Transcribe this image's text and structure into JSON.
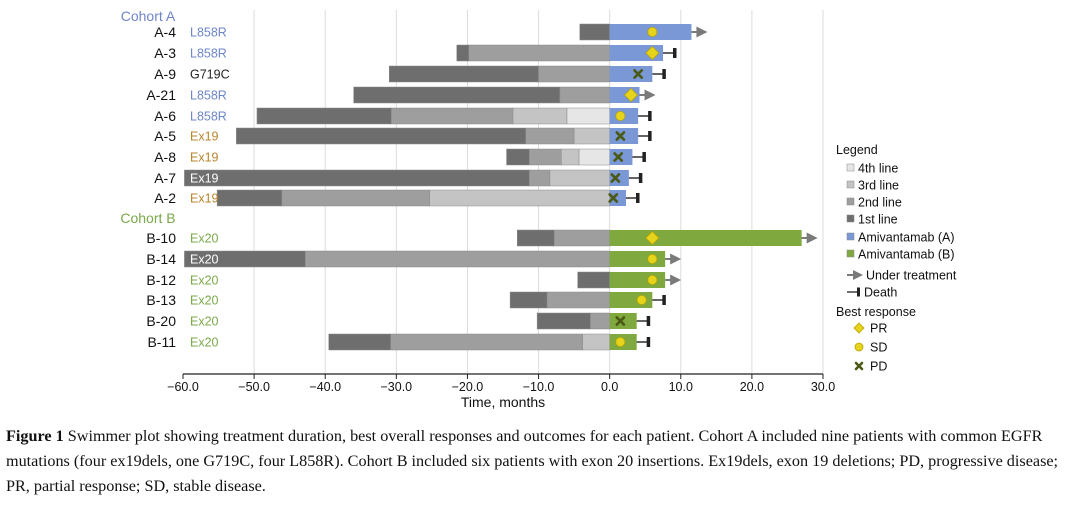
{
  "chart_data": {
    "type": "swimmer",
    "xlabel": "Time, months",
    "xlim": [
      -60,
      30
    ],
    "xticks": [
      "−60.0",
      "−50.0",
      "−40.0",
      "−30.0",
      "−20.0",
      "−10.0",
      "0.0",
      "10.0",
      "20.0",
      "30.0"
    ],
    "xtick_values": [
      -60,
      -50,
      -40,
      -30,
      -20,
      -10,
      0,
      10,
      20,
      30
    ],
    "colors": {
      "line1": "#6e6e6e",
      "line2": "#9e9e9e",
      "line3": "#c4c4c4",
      "line4": "#e6e6e6",
      "amivantamab_a": "#7a97d6",
      "amivantamab_b": "#7fa83e",
      "cohort_a_text": "#6d86c9",
      "cohort_b_text": "#7aa84a",
      "ex19_text": "#b7852d",
      "marker_pr": "#e6d31c",
      "marker_sd": "#e6d31c",
      "marker_pd": "#4a5a14",
      "arrow": "#7a7a7a",
      "death": "#222222"
    },
    "cohorts": [
      {
        "label": "Cohort A",
        "before_row": 0
      },
      {
        "label": "Cohort B",
        "before_row": 9
      }
    ],
    "patients": [
      {
        "id": "A-4",
        "mutation": "L858R",
        "cohort": "A",
        "prior": [
          [
            -4.2,
            0,
            1
          ]
        ],
        "treatment": 11.5,
        "response": "SD",
        "response_at": 6,
        "outcome": "arrow"
      },
      {
        "id": "A-3",
        "mutation": "L858R",
        "cohort": "A",
        "prior": [
          [
            -21.5,
            -19.8,
            1
          ],
          [
            -19.8,
            0,
            2
          ]
        ],
        "treatment": 7.5,
        "response": "PR",
        "response_at": 6,
        "outcome": "death"
      },
      {
        "id": "A-9",
        "mutation": "G719C",
        "cohort": "A",
        "prior": [
          [
            -31,
            -10,
            1
          ],
          [
            -10,
            0,
            2
          ]
        ],
        "treatment": 6,
        "response": "PD",
        "response_at": 4,
        "outcome": "death"
      },
      {
        "id": "A-21",
        "mutation": "L858R",
        "cohort": "A",
        "prior": [
          [
            -36,
            -7,
            1
          ],
          [
            -7,
            0,
            2
          ]
        ],
        "treatment": 4.2,
        "response": "PR",
        "response_at": 3,
        "outcome": "arrow"
      },
      {
        "id": "A-6",
        "mutation": "L858R",
        "cohort": "A",
        "prior": [
          [
            -49.6,
            -30.7,
            1
          ],
          [
            -30.7,
            -13.6,
            2
          ],
          [
            -13.6,
            -6,
            3
          ],
          [
            -6,
            0,
            4
          ]
        ],
        "treatment": 4,
        "response": "SD",
        "response_at": 1.5,
        "outcome": "death"
      },
      {
        "id": "A-5",
        "mutation": "Ex19",
        "cohort": "A",
        "prior": [
          [
            -52.5,
            -11.8,
            1
          ],
          [
            -11.8,
            -5,
            2
          ],
          [
            -5,
            0,
            3
          ]
        ],
        "treatment": 4,
        "response": "PD",
        "response_at": 1.5,
        "outcome": "death"
      },
      {
        "id": "A-8",
        "mutation": "Ex19",
        "cohort": "A",
        "prior": [
          [
            -14.5,
            -11.3,
            1
          ],
          [
            -11.3,
            -6.8,
            2
          ],
          [
            -6.8,
            -4.3,
            3
          ],
          [
            -4.3,
            0,
            4
          ]
        ],
        "treatment": 3.2,
        "response": "PD",
        "response_at": 1.2,
        "outcome": "death"
      },
      {
        "id": "A-7",
        "mutation": "Ex19",
        "cohort": "A",
        "prior": [
          [
            -59.8,
            -11.3,
            1
          ],
          [
            -11.3,
            -8.4,
            2
          ],
          [
            -8.4,
            0,
            3
          ]
        ],
        "treatment": 2.7,
        "response": "PD",
        "response_at": 0.8,
        "outcome": "death"
      },
      {
        "id": "A-2",
        "mutation": "Ex19",
        "cohort": "A",
        "prior": [
          [
            -55.2,
            -46.1,
            1
          ],
          [
            -46.1,
            -25.3,
            2
          ],
          [
            -25.3,
            0,
            3
          ]
        ],
        "treatment": 2.3,
        "response": "PD",
        "response_at": 0.5,
        "outcome": "death"
      },
      {
        "id": "B-10",
        "mutation": "Ex20",
        "cohort": "B",
        "prior": [
          [
            -13,
            -7.8,
            1
          ],
          [
            -7.8,
            0,
            2
          ]
        ],
        "treatment": 27,
        "response": "PR",
        "response_at": 6,
        "outcome": "arrow"
      },
      {
        "id": "B-14",
        "mutation": "Ex20",
        "cohort": "B",
        "prior": [
          [
            -59.8,
            -42.8,
            1
          ],
          [
            -42.8,
            0,
            2
          ]
        ],
        "treatment": 7.8,
        "response": "SD",
        "response_at": 6,
        "outcome": "arrow"
      },
      {
        "id": "B-12",
        "mutation": "Ex20",
        "cohort": "B",
        "prior": [
          [
            -4.5,
            0,
            1
          ]
        ],
        "treatment": 7.8,
        "response": "SD",
        "response_at": 6,
        "outcome": "arrow"
      },
      {
        "id": "B-13",
        "mutation": "Ex20",
        "cohort": "B",
        "prior": [
          [
            -14,
            -8.8,
            1
          ],
          [
            -8.8,
            0,
            2
          ]
        ],
        "treatment": 6,
        "response": "SD",
        "response_at": 4.5,
        "outcome": "death"
      },
      {
        "id": "B-20",
        "mutation": "Ex20",
        "cohort": "B",
        "prior": [
          [
            -10.2,
            -2.7,
            1
          ],
          [
            -2.7,
            0,
            2
          ]
        ],
        "treatment": 3.8,
        "response": "PD",
        "response_at": 1.5,
        "outcome": "death"
      },
      {
        "id": "B-11",
        "mutation": "Ex20",
        "cohort": "B",
        "prior": [
          [
            -39.5,
            -30.8,
            1
          ],
          [
            -30.8,
            -3.8,
            2
          ],
          [
            -3.8,
            0,
            3
          ]
        ],
        "treatment": 3.8,
        "response": "SD",
        "response_at": 1.5,
        "outcome": "death"
      }
    ],
    "legend": {
      "title": "Legend",
      "items": [
        {
          "label": "4th line",
          "kind": "box",
          "color_key": "line4"
        },
        {
          "label": "3rd line",
          "kind": "box",
          "color_key": "line3"
        },
        {
          "label": "2nd line",
          "kind": "box",
          "color_key": "line2"
        },
        {
          "label": "1st line",
          "kind": "box",
          "color_key": "line1"
        },
        {
          "label": "Amivantamab (A)",
          "kind": "box",
          "color_key": "amivantamab_a"
        },
        {
          "label": "Amivantamab (B)",
          "kind": "box",
          "color_key": "amivantamab_b"
        },
        {
          "label": "Under treatment",
          "kind": "arrow"
        },
        {
          "label": "Death",
          "kind": "death"
        }
      ],
      "response_title": "Best response",
      "responses": [
        {
          "label": "PR",
          "kind": "PR"
        },
        {
          "label": "SD",
          "kind": "SD"
        },
        {
          "label": "PD",
          "kind": "PD"
        }
      ]
    }
  },
  "caption": {
    "label": "Figure 1",
    "text": " Swimmer plot showing treatment duration, best overall responses and outcomes for each patient. Cohort A included nine patients with common EGFR mutations (four ex19dels, one G719C, four L858R). Cohort B included six patients with exon 20 insertions. Ex19dels, exon 19 deletions;  PD, progressive disease; PR, partial response; SD, stable disease."
  }
}
